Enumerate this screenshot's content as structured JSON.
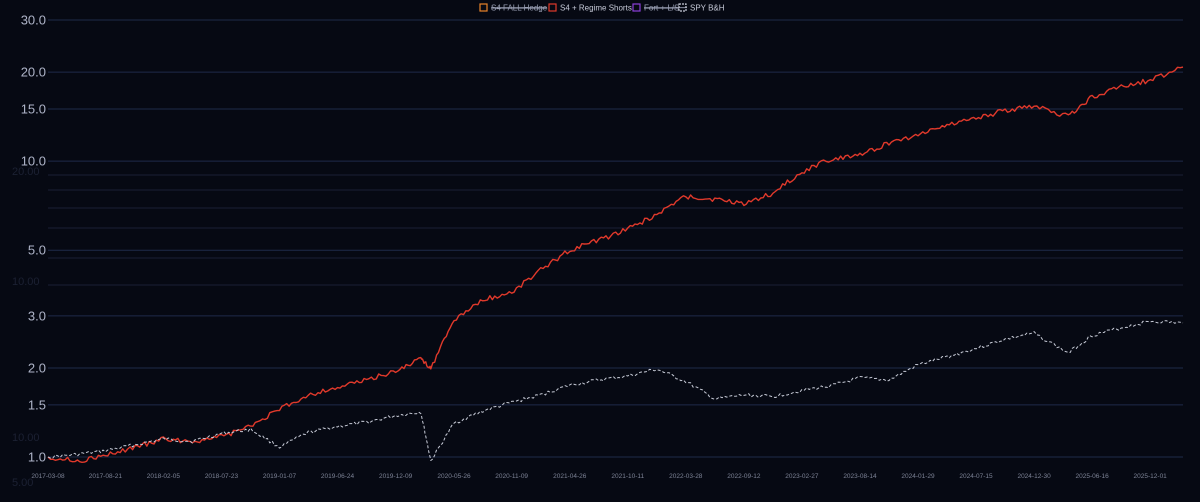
{
  "chart_data": {
    "type": "line",
    "title": "",
    "xlabel": "",
    "ylabel": "",
    "y_scale": "log",
    "ylim": [
      0.93,
      30
    ],
    "grid": true,
    "legend_position": "top-center",
    "yticks": [
      "30.0",
      "20.0",
      "15.0",
      "10.0",
      "5.0",
      "3.0",
      "2.0",
      "1.5",
      "1.0"
    ],
    "ytick_values": [
      30,
      20,
      15,
      10,
      5,
      3,
      2,
      1.5,
      1
    ],
    "ghost_axis_labels": [
      "20.00",
      "10.00",
      "10.00",
      "5.00"
    ],
    "xticks": [
      "2017-03-08",
      "2017-08-21",
      "2018-02-05",
      "2018-07-23",
      "2019-01-07",
      "2019-06-24",
      "2019-12-09",
      "2020-05-26",
      "2020-11-09",
      "2021-04-26",
      "2021-10-11",
      "2022-03-28",
      "2022-09-12",
      "2023-02-27",
      "2023-08-14",
      "2024-01-29",
      "2024-07-15",
      "2024-12-30",
      "2025-06-16",
      "2025-12-01"
    ],
    "x_range": [
      "2017-03-08",
      "2026-03-06"
    ],
    "legend": [
      {
        "name": "S4 FALL Hedge",
        "color": "#e8832a",
        "hidden": true
      },
      {
        "name": "S4 + Regime Shorts",
        "color": "#e0392b",
        "hidden": false
      },
      {
        "name": "Fort + L/S",
        "color": "#8b3fd9",
        "hidden": true
      },
      {
        "name": "SPY B&H",
        "color": "#c8ccd8",
        "hidden": false
      }
    ],
    "series": [
      {
        "name": "S4 + Regime Shorts",
        "color": "#e0392b",
        "style": "solid",
        "x": [
          "2017-03-08",
          "2017-06-01",
          "2017-08-21",
          "2017-11-15",
          "2018-02-05",
          "2018-04-30",
          "2018-07-23",
          "2018-10-15",
          "2019-01-07",
          "2019-03-31",
          "2019-06-24",
          "2019-09-16",
          "2019-12-09",
          "2020-02-20",
          "2020-03-20",
          "2020-05-26",
          "2020-08-17",
          "2020-11-09",
          "2021-02-01",
          "2021-04-26",
          "2021-07-19",
          "2021-10-11",
          "2022-01-03",
          "2022-03-28",
          "2022-06-20",
          "2022-09-12",
          "2022-12-05",
          "2023-02-27",
          "2023-05-22",
          "2023-08-14",
          "2023-11-06",
          "2024-01-29",
          "2024-04-22",
          "2024-07-15",
          "2024-10-07",
          "2024-12-30",
          "2025-04-08",
          "2025-06-16",
          "2025-09-08",
          "2025-12-01",
          "2026-03-06"
        ],
        "values": [
          1.0,
          0.97,
          1.01,
          1.08,
          1.15,
          1.13,
          1.17,
          1.27,
          1.45,
          1.62,
          1.72,
          1.82,
          1.95,
          2.15,
          2.0,
          2.9,
          3.4,
          3.6,
          4.3,
          5.0,
          5.4,
          5.9,
          6.6,
          7.6,
          7.4,
          7.2,
          7.8,
          9.2,
          10.2,
          10.5,
          11.5,
          12.3,
          13.3,
          14.0,
          14.8,
          15.3,
          14.2,
          16.5,
          17.8,
          18.8,
          20.8
        ]
      },
      {
        "name": "SPY B&H",
        "color": "#c8ccd8",
        "style": "dashed",
        "x": [
          "2017-03-08",
          "2017-06-01",
          "2017-08-21",
          "2017-11-15",
          "2018-02-05",
          "2018-04-30",
          "2018-07-23",
          "2018-10-15",
          "2019-01-07",
          "2019-03-31",
          "2019-06-24",
          "2019-09-16",
          "2019-12-09",
          "2020-02-20",
          "2020-03-20",
          "2020-05-26",
          "2020-08-17",
          "2020-11-09",
          "2021-02-01",
          "2021-04-26",
          "2021-07-19",
          "2021-10-11",
          "2022-01-03",
          "2022-03-28",
          "2022-06-20",
          "2022-09-12",
          "2022-12-05",
          "2023-02-27",
          "2023-05-22",
          "2023-08-14",
          "2023-11-06",
          "2024-01-29",
          "2024-04-22",
          "2024-07-15",
          "2024-10-07",
          "2024-12-30",
          "2025-04-08",
          "2025-06-16",
          "2025-09-08",
          "2025-12-01",
          "2026-03-06"
        ],
        "values": [
          1.0,
          1.02,
          1.05,
          1.1,
          1.15,
          1.13,
          1.2,
          1.24,
          1.08,
          1.21,
          1.27,
          1.31,
          1.38,
          1.42,
          0.97,
          1.3,
          1.43,
          1.53,
          1.62,
          1.75,
          1.82,
          1.88,
          1.98,
          1.8,
          1.57,
          1.62,
          1.6,
          1.68,
          1.74,
          1.85,
          1.82,
          2.05,
          2.18,
          2.33,
          2.5,
          2.62,
          2.25,
          2.58,
          2.73,
          2.88,
          2.84
        ]
      }
    ]
  }
}
